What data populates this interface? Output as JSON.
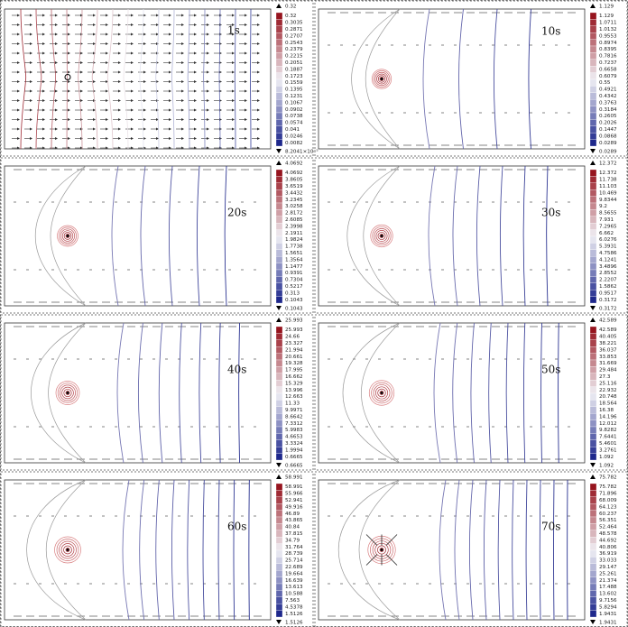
{
  "panels": [
    {
      "time": "1s",
      "max": "0.32",
      "min": "8.2041×10⁻⁵",
      "ticks": [
        "0.32",
        "0.3035",
        "0.2871",
        "0.2707",
        "0.2543",
        "0.2379",
        "0.2215",
        "0.2051",
        "0.1887",
        "0.1723",
        "0.1559",
        "0.1395",
        "0.1231",
        "0.1067",
        "0.0902",
        "0.0738",
        "0.0574",
        "0.041",
        "0.0246",
        "0.0082"
      ]
    },
    {
      "time": "10s",
      "max": "1.129",
      "min": "0.0289",
      "ticks": [
        "1.129",
        "1.0711",
        "1.0132",
        "0.9553",
        "0.8974",
        "0.8395",
        "0.7816",
        "0.7237",
        "0.6658",
        "0.6079",
        "0.55",
        "0.4921",
        "0.4342",
        "0.3763",
        "0.3184",
        "0.2605",
        "0.2026",
        "0.1447",
        "0.0868",
        "0.0289"
      ]
    },
    {
      "time": "20s",
      "max": "4.0692",
      "min": "0.1043",
      "ticks": [
        "4.0692",
        "3.8605",
        "3.6519",
        "3.4432",
        "3.2345",
        "3.0258",
        "2.8172",
        "2.6085",
        "2.3998",
        "2.1911",
        "1.9824",
        "1.7738",
        "1.5651",
        "1.3564",
        "1.1477",
        "0.9391",
        "0.7304",
        "0.5217",
        "0.313",
        "0.1043"
      ]
    },
    {
      "time": "30s",
      "max": "12.372",
      "min": "0.3172",
      "ticks": [
        "12.372",
        "11.738",
        "11.103",
        "10.469",
        "9.8344",
        "9.2",
        "8.5655",
        "7.931",
        "7.2965",
        "6.662",
        "6.0276",
        "5.3931",
        "4.7586",
        "4.1241",
        "3.4896",
        "2.8552",
        "2.2207",
        "1.5862",
        "0.9517",
        "0.3172"
      ]
    },
    {
      "time": "40s",
      "max": "25.993",
      "min": "0.6665",
      "ticks": [
        "25.993",
        "24.66",
        "23.327",
        "21.994",
        "20.661",
        "19.328",
        "17.995",
        "16.662",
        "15.329",
        "13.996",
        "12.663",
        "11.33",
        "9.9971",
        "8.6642",
        "7.3312",
        "5.9983",
        "4.6653",
        "3.3324",
        "1.9994",
        "0.6665"
      ]
    },
    {
      "time": "50s",
      "max": "42.589",
      "min": "1.092",
      "ticks": [
        "42.589",
        "40.405",
        "38.221",
        "36.037",
        "33.853",
        "31.669",
        "29.484",
        "27.3",
        "25.116",
        "22.932",
        "20.748",
        "18.564",
        "16.38",
        "14.196",
        "12.012",
        "9.8282",
        "7.6441",
        "5.4601",
        "3.2761",
        "1.092"
      ]
    },
    {
      "time": "60s",
      "max": "58.991",
      "min": "1.5126",
      "ticks": [
        "58.991",
        "55.966",
        "52.941",
        "49.916",
        "46.89",
        "43.865",
        "40.84",
        "37.815",
        "34.79",
        "31.764",
        "28.739",
        "25.714",
        "22.689",
        "19.664",
        "16.639",
        "13.613",
        "10.588",
        "7.563",
        "4.5378",
        "1.5126"
      ]
    },
    {
      "time": "70s",
      "max": "75.782",
      "min": "1.9431",
      "ticks": [
        "75.782",
        "71.896",
        "68.009",
        "64.123",
        "60.237",
        "56.351",
        "52.464",
        "48.578",
        "44.692",
        "40.806",
        "36.919",
        "33.033",
        "29.147",
        "25.261",
        "21.374",
        "17.488",
        "13.602",
        "9.7156",
        "5.8294",
        "1.9431"
      ]
    }
  ]
}
